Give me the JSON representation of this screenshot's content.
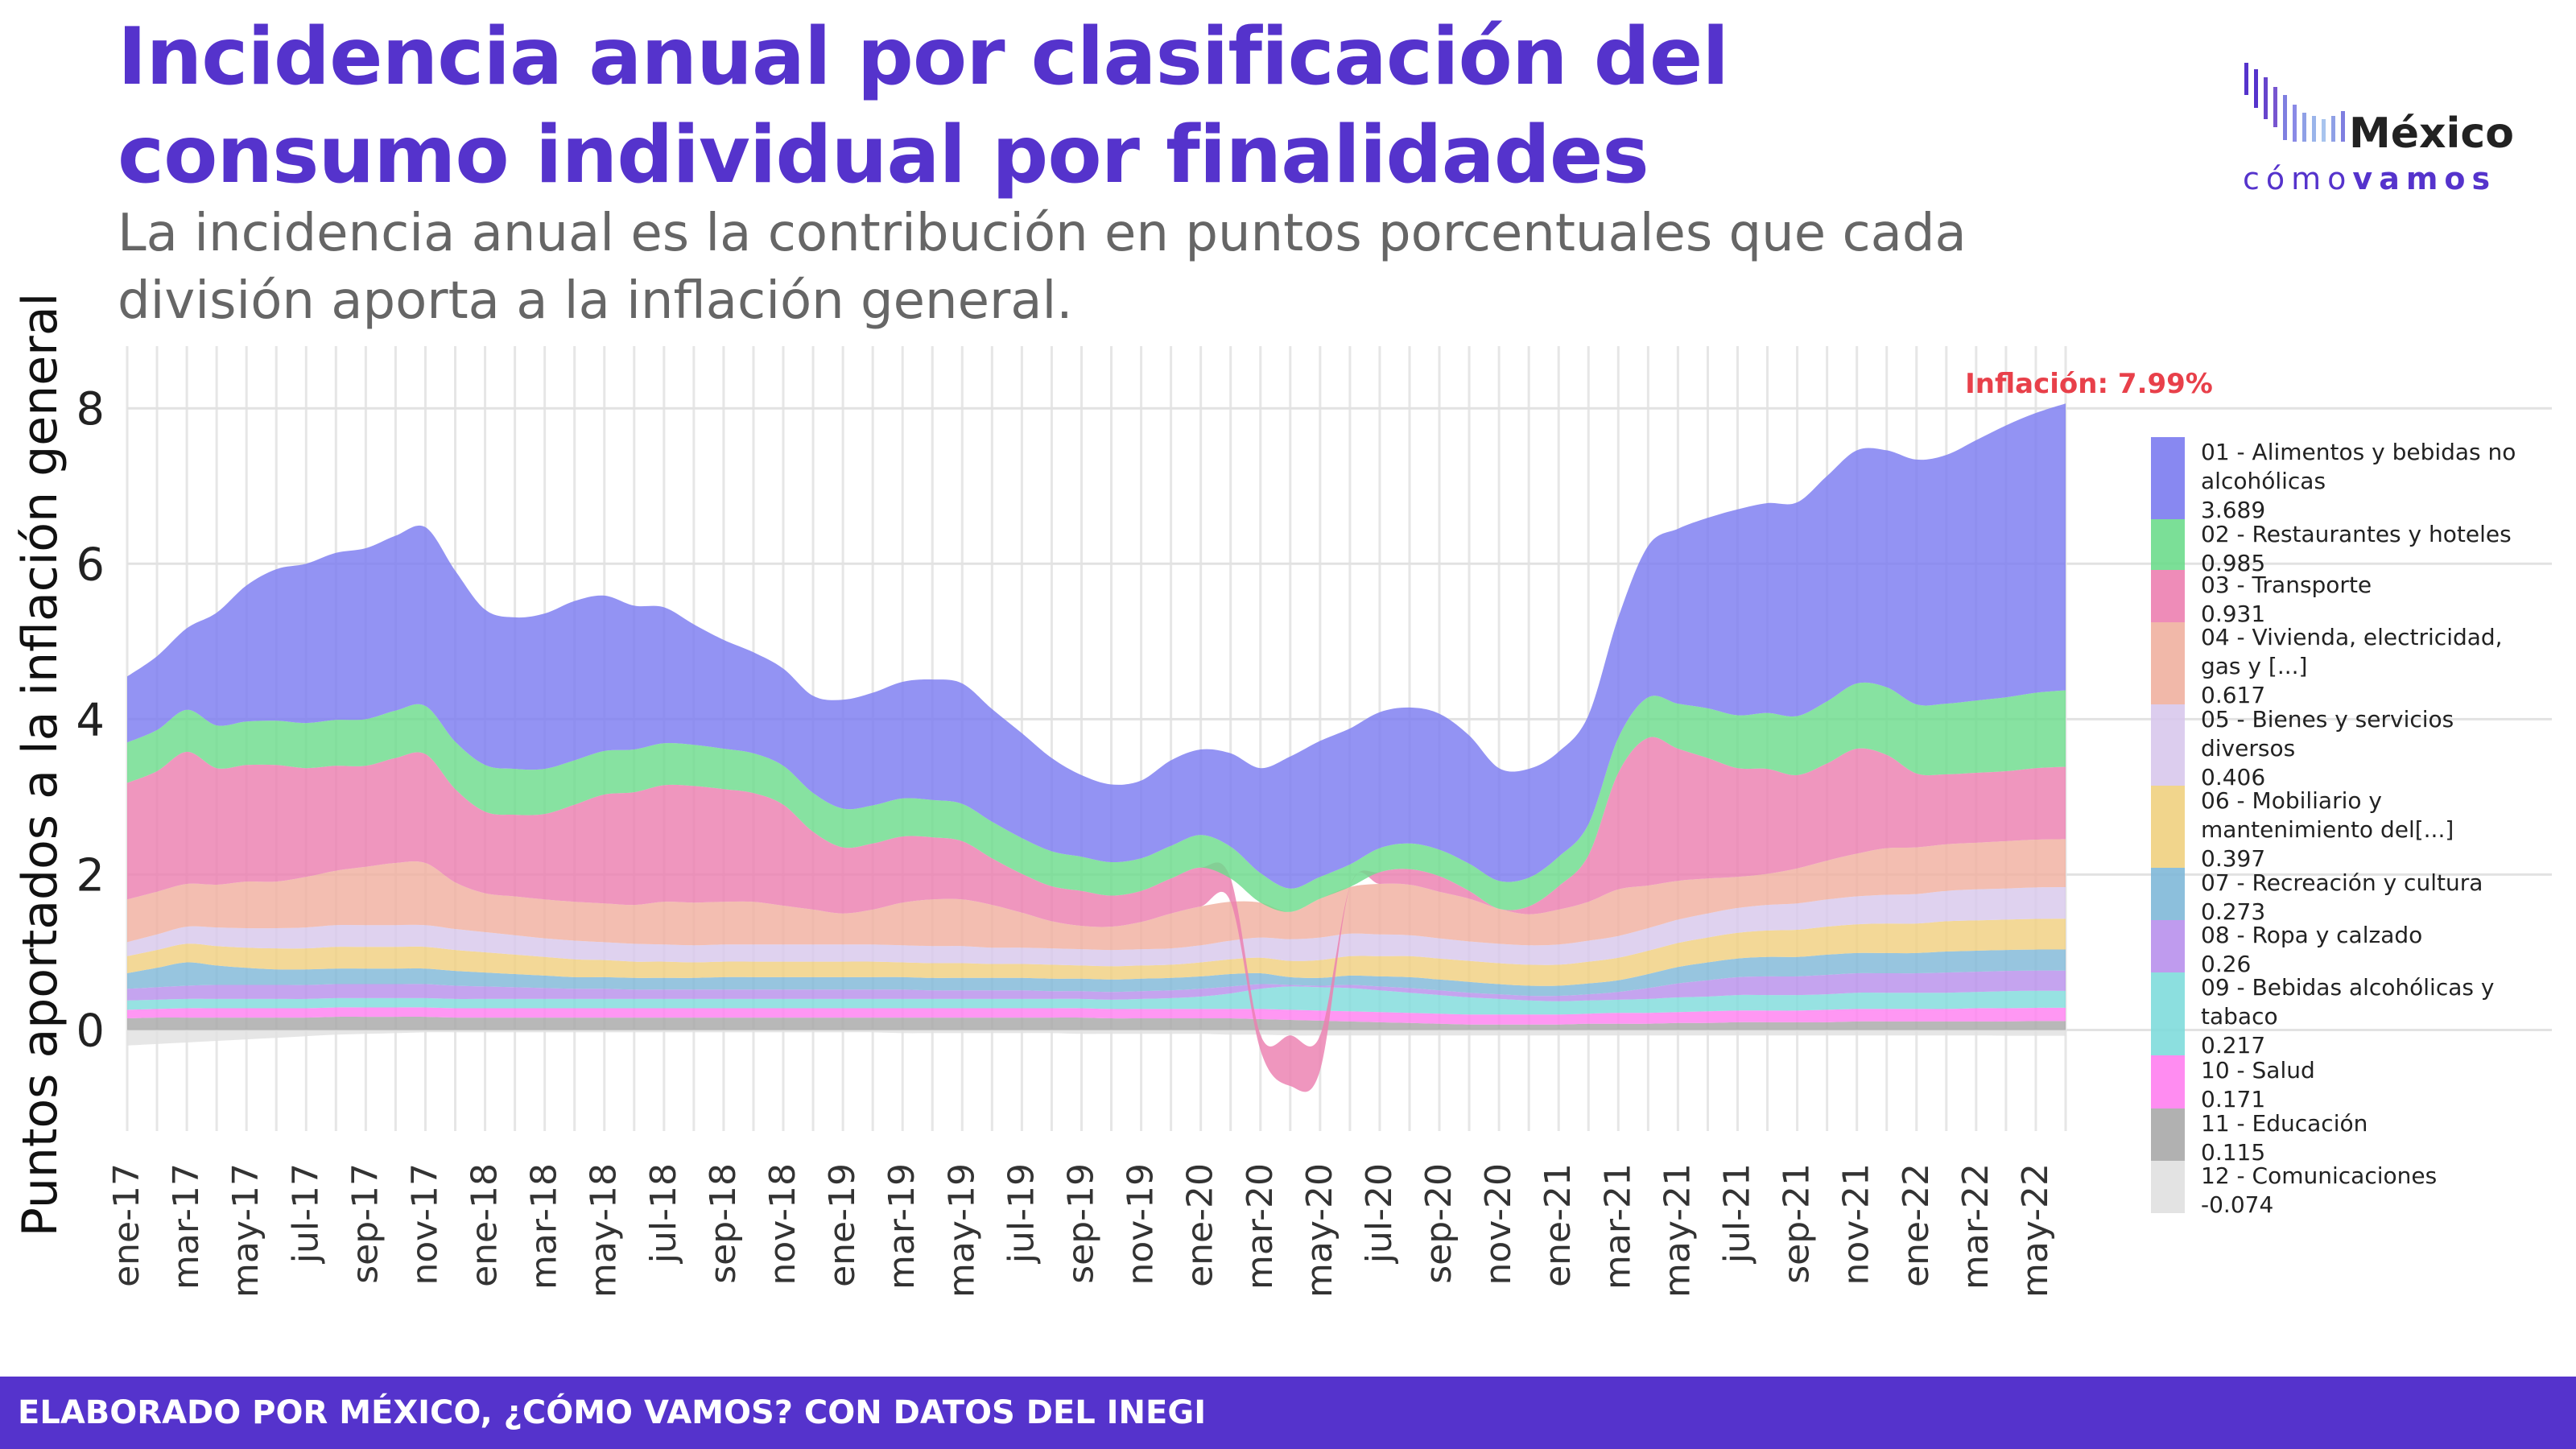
{
  "header": {
    "title": "Incidencia anual por clasificación del consumo individual por finalidades",
    "subtitle": "La incidencia anual es la contribución en puntos porcentuales que cada división aporta a la inflación general."
  },
  "logo": {
    "word_top": "México",
    "word_bottom_a": "cómo",
    "word_bottom_b": "vamos",
    "icon": "bar-equalizer-icon"
  },
  "footer": {
    "text": "ELABORADO POR MÉXICO, ¿CÓMO VAMOS? CON DATOS DEL INEGI"
  },
  "chart_data": {
    "type": "area",
    "stacked": true,
    "ylabel": "Puntos aportados a la inflación general",
    "xlabel": "",
    "ylim": [
      -1.3,
      8.8
    ],
    "yticks": [
      0,
      2,
      4,
      6,
      8
    ],
    "grid": true,
    "legend_position": "right",
    "annotation": {
      "text": "Inflación: 7.99%",
      "color": "#e8404a"
    },
    "x_tick_labels": [
      "ene-17",
      "mar-17",
      "may-17",
      "jul-17",
      "sep-17",
      "nov-17",
      "ene-18",
      "mar-18",
      "may-18",
      "jul-18",
      "sep-18",
      "nov-18",
      "ene-19",
      "mar-19",
      "may-19",
      "jul-19",
      "sep-19",
      "nov-19",
      "ene-20",
      "mar-20",
      "may-20",
      "jul-20",
      "sep-20",
      "nov-20",
      "ene-21",
      "mar-21",
      "may-21",
      "jul-21",
      "sep-21",
      "nov-21",
      "ene-22",
      "mar-22",
      "may-22"
    ],
    "x": [
      "ene-17",
      "feb-17",
      "mar-17",
      "abr-17",
      "may-17",
      "jun-17",
      "jul-17",
      "ago-17",
      "sep-17",
      "oct-17",
      "nov-17",
      "dic-17",
      "ene-18",
      "feb-18",
      "mar-18",
      "abr-18",
      "may-18",
      "jun-18",
      "jul-18",
      "ago-18",
      "sep-18",
      "oct-18",
      "nov-18",
      "dic-18",
      "ene-19",
      "feb-19",
      "mar-19",
      "abr-19",
      "may-19",
      "jun-19",
      "jul-19",
      "ago-19",
      "sep-19",
      "oct-19",
      "nov-19",
      "dic-19",
      "ene-20",
      "feb-20",
      "mar-20",
      "abr-20",
      "may-20",
      "jun-20",
      "jul-20",
      "ago-20",
      "sep-20",
      "oct-20",
      "nov-20",
      "dic-20",
      "ene-21",
      "feb-21",
      "mar-21",
      "abr-21",
      "may-21",
      "jun-21",
      "jul-21",
      "ago-21",
      "sep-21",
      "oct-21",
      "nov-21",
      "dic-21",
      "ene-22",
      "feb-22",
      "mar-22",
      "abr-22",
      "may-22",
      "jun-22"
    ],
    "series": [
      {
        "name": "01 - Alimentos y bebidas no alcohólicas",
        "last_label": "3.689",
        "color": "#7b7bf0",
        "values": [
          0.85,
          0.95,
          1.05,
          1.45,
          1.75,
          1.95,
          2.05,
          2.15,
          2.2,
          2.25,
          2.3,
          2.2,
          2.0,
          1.95,
          2.0,
          2.05,
          2.0,
          1.85,
          1.75,
          1.55,
          1.4,
          1.3,
          1.25,
          1.25,
          1.4,
          1.45,
          1.5,
          1.55,
          1.55,
          1.45,
          1.35,
          1.2,
          1.05,
          1.0,
          1.0,
          1.1,
          1.1,
          1.2,
          1.35,
          1.7,
          1.75,
          1.75,
          1.75,
          1.75,
          1.75,
          1.65,
          1.45,
          1.4,
          1.35,
          1.4,
          1.55,
          1.95,
          2.25,
          2.45,
          2.65,
          2.7,
          2.75,
          2.9,
          3.0,
          3.05,
          3.15,
          3.2,
          3.35,
          3.5,
          3.6,
          3.689
        ]
      },
      {
        "name": "02 - Restaurantes y hoteles",
        "last_label": "0.985",
        "color": "#6ddc8c",
        "values": [
          0.52,
          0.53,
          0.54,
          0.55,
          0.56,
          0.57,
          0.58,
          0.59,
          0.6,
          0.61,
          0.62,
          0.61,
          0.6,
          0.59,
          0.58,
          0.57,
          0.56,
          0.55,
          0.54,
          0.53,
          0.52,
          0.51,
          0.5,
          0.5,
          0.5,
          0.49,
          0.49,
          0.48,
          0.48,
          0.47,
          0.46,
          0.45,
          0.44,
          0.43,
          0.42,
          0.42,
          0.42,
          0.41,
          0.38,
          0.3,
          0.28,
          0.29,
          0.31,
          0.33,
          0.34,
          0.35,
          0.36,
          0.37,
          0.38,
          0.4,
          0.45,
          0.52,
          0.58,
          0.64,
          0.68,
          0.72,
          0.76,
          0.8,
          0.84,
          0.87,
          0.89,
          0.91,
          0.93,
          0.95,
          0.97,
          0.985
        ]
      },
      {
        "name": "03 - Transporte",
        "last_label": "0.931",
        "color": "#ec7fb0",
        "values": [
          1.5,
          1.55,
          1.7,
          1.5,
          1.5,
          1.5,
          1.4,
          1.35,
          1.3,
          1.35,
          1.4,
          1.2,
          1.05,
          1.05,
          1.1,
          1.25,
          1.4,
          1.45,
          1.5,
          1.5,
          1.45,
          1.4,
          1.3,
          1.0,
          0.85,
          0.85,
          0.85,
          0.8,
          0.75,
          0.6,
          0.5,
          0.45,
          0.45,
          0.4,
          0.4,
          0.45,
          0.5,
          0.3,
          -0.2,
          -0.65,
          -0.45,
          0.0,
          0.15,
          0.2,
          0.2,
          0.1,
          0.0,
          0.1,
          0.3,
          0.6,
          1.5,
          1.9,
          1.7,
          1.55,
          1.4,
          1.35,
          1.2,
          1.25,
          1.35,
          1.2,
          0.95,
          0.9,
          0.9,
          0.9,
          0.92,
          0.931
        ]
      },
      {
        "name": "04 - Vivienda, electricidad, gas y [...]",
        "last_label": "0.617",
        "color": "#f0b0a0",
        "values": [
          0.55,
          0.55,
          0.55,
          0.55,
          0.6,
          0.6,
          0.65,
          0.7,
          0.75,
          0.8,
          0.8,
          0.6,
          0.5,
          0.5,
          0.5,
          0.5,
          0.5,
          0.5,
          0.55,
          0.55,
          0.55,
          0.55,
          0.5,
          0.45,
          0.4,
          0.45,
          0.55,
          0.6,
          0.6,
          0.55,
          0.45,
          0.35,
          0.3,
          0.3,
          0.35,
          0.45,
          0.5,
          0.5,
          0.45,
          0.35,
          0.5,
          0.6,
          0.65,
          0.65,
          0.6,
          0.55,
          0.45,
          0.4,
          0.45,
          0.5,
          0.6,
          0.55,
          0.5,
          0.45,
          0.4,
          0.4,
          0.45,
          0.5,
          0.55,
          0.6,
          0.6,
          0.6,
          0.6,
          0.61,
          0.615,
          0.617
        ]
      },
      {
        "name": "05 - Bienes y servicios diversos",
        "last_label": "0.406",
        "color": "#d8c8ec",
        "values": [
          0.18,
          0.2,
          0.22,
          0.24,
          0.25,
          0.26,
          0.27,
          0.28,
          0.28,
          0.28,
          0.28,
          0.27,
          0.26,
          0.25,
          0.24,
          0.24,
          0.23,
          0.23,
          0.22,
          0.22,
          0.22,
          0.22,
          0.22,
          0.22,
          0.22,
          0.22,
          0.22,
          0.22,
          0.22,
          0.21,
          0.21,
          0.21,
          0.21,
          0.21,
          0.21,
          0.21,
          0.22,
          0.24,
          0.26,
          0.28,
          0.29,
          0.29,
          0.28,
          0.27,
          0.26,
          0.25,
          0.25,
          0.25,
          0.26,
          0.27,
          0.28,
          0.29,
          0.3,
          0.31,
          0.32,
          0.33,
          0.34,
          0.35,
          0.36,
          0.37,
          0.38,
          0.39,
          0.4,
          0.4,
          0.405,
          0.406
        ]
      },
      {
        "name": "06 - Mobiliario y mantenimiento del[...]",
        "last_label": "0.397",
        "color": "#f0d080",
        "values": [
          0.22,
          0.23,
          0.24,
          0.25,
          0.26,
          0.27,
          0.27,
          0.28,
          0.28,
          0.28,
          0.28,
          0.27,
          0.26,
          0.25,
          0.24,
          0.23,
          0.22,
          0.21,
          0.21,
          0.2,
          0.2,
          0.2,
          0.2,
          0.2,
          0.2,
          0.2,
          0.19,
          0.19,
          0.19,
          0.18,
          0.18,
          0.18,
          0.17,
          0.17,
          0.17,
          0.17,
          0.18,
          0.19,
          0.2,
          0.21,
          0.23,
          0.25,
          0.26,
          0.27,
          0.27,
          0.27,
          0.27,
          0.27,
          0.27,
          0.28,
          0.29,
          0.3,
          0.31,
          0.32,
          0.33,
          0.34,
          0.35,
          0.36,
          0.37,
          0.38,
          0.38,
          0.39,
          0.39,
          0.39,
          0.395,
          0.397
        ]
      },
      {
        "name": "07 - Recreación y cultura",
        "last_label": "0.273",
        "color": "#80b8d8",
        "values": [
          0.2,
          0.25,
          0.3,
          0.25,
          0.22,
          0.2,
          0.2,
          0.2,
          0.2,
          0.2,
          0.2,
          0.19,
          0.18,
          0.17,
          0.16,
          0.15,
          0.15,
          0.15,
          0.15,
          0.15,
          0.16,
          0.16,
          0.16,
          0.16,
          0.16,
          0.16,
          0.16,
          0.16,
          0.16,
          0.16,
          0.16,
          0.16,
          0.16,
          0.16,
          0.16,
          0.16,
          0.16,
          0.16,
          0.14,
          0.1,
          0.1,
          0.12,
          0.13,
          0.14,
          0.14,
          0.14,
          0.13,
          0.13,
          0.13,
          0.14,
          0.15,
          0.18,
          0.21,
          0.23,
          0.24,
          0.25,
          0.25,
          0.26,
          0.26,
          0.26,
          0.26,
          0.27,
          0.27,
          0.27,
          0.27,
          0.273
        ]
      },
      {
        "name": "08 - Ropa y calzado",
        "last_label": "0.26",
        "color": "#b890ec",
        "values": [
          0.15,
          0.16,
          0.17,
          0.18,
          0.18,
          0.18,
          0.18,
          0.18,
          0.18,
          0.18,
          0.18,
          0.17,
          0.16,
          0.15,
          0.14,
          0.13,
          0.13,
          0.12,
          0.12,
          0.12,
          0.12,
          0.12,
          0.12,
          0.12,
          0.12,
          0.12,
          0.12,
          0.11,
          0.11,
          0.11,
          0.11,
          0.1,
          0.1,
          0.1,
          0.1,
          0.1,
          0.1,
          0.09,
          0.06,
          0.02,
          0.02,
          0.04,
          0.05,
          0.06,
          0.06,
          0.06,
          0.06,
          0.06,
          0.07,
          0.08,
          0.1,
          0.14,
          0.18,
          0.21,
          0.23,
          0.24,
          0.24,
          0.25,
          0.25,
          0.25,
          0.25,
          0.26,
          0.26,
          0.26,
          0.26,
          0.26
        ]
      },
      {
        "name": "09 - Bebidas alcohólicas y tabaco",
        "last_label": "0.217",
        "color": "#80dcdc",
        "values": [
          0.12,
          0.12,
          0.12,
          0.12,
          0.12,
          0.12,
          0.12,
          0.12,
          0.12,
          0.12,
          0.12,
          0.12,
          0.12,
          0.12,
          0.12,
          0.12,
          0.12,
          0.12,
          0.12,
          0.12,
          0.12,
          0.12,
          0.12,
          0.12,
          0.12,
          0.12,
          0.12,
          0.12,
          0.12,
          0.12,
          0.12,
          0.12,
          0.12,
          0.12,
          0.13,
          0.14,
          0.16,
          0.2,
          0.26,
          0.3,
          0.3,
          0.3,
          0.28,
          0.26,
          0.24,
          0.22,
          0.2,
          0.18,
          0.17,
          0.17,
          0.17,
          0.18,
          0.19,
          0.19,
          0.2,
          0.2,
          0.2,
          0.2,
          0.21,
          0.21,
          0.21,
          0.21,
          0.21,
          0.22,
          0.22,
          0.217
        ]
      },
      {
        "name": "10 - Salud",
        "last_label": "0.171",
        "color": "#ff80f0",
        "values": [
          0.11,
          0.11,
          0.12,
          0.12,
          0.12,
          0.12,
          0.12,
          0.12,
          0.12,
          0.12,
          0.12,
          0.12,
          0.12,
          0.12,
          0.12,
          0.12,
          0.12,
          0.12,
          0.12,
          0.12,
          0.12,
          0.12,
          0.12,
          0.12,
          0.12,
          0.12,
          0.12,
          0.12,
          0.12,
          0.12,
          0.12,
          0.12,
          0.12,
          0.12,
          0.12,
          0.12,
          0.12,
          0.12,
          0.13,
          0.13,
          0.13,
          0.13,
          0.13,
          0.13,
          0.13,
          0.13,
          0.13,
          0.13,
          0.13,
          0.13,
          0.14,
          0.14,
          0.14,
          0.15,
          0.15,
          0.15,
          0.15,
          0.16,
          0.16,
          0.16,
          0.16,
          0.16,
          0.17,
          0.17,
          0.17,
          0.171
        ]
      },
      {
        "name": "11 - Educación",
        "last_label": "0.115",
        "color": "#a8a8a8",
        "values": [
          0.15,
          0.16,
          0.16,
          0.16,
          0.16,
          0.16,
          0.16,
          0.17,
          0.17,
          0.17,
          0.17,
          0.16,
          0.16,
          0.16,
          0.16,
          0.16,
          0.16,
          0.16,
          0.16,
          0.16,
          0.16,
          0.16,
          0.16,
          0.16,
          0.16,
          0.16,
          0.16,
          0.16,
          0.16,
          0.16,
          0.16,
          0.16,
          0.16,
          0.15,
          0.15,
          0.15,
          0.15,
          0.15,
          0.14,
          0.13,
          0.12,
          0.11,
          0.1,
          0.09,
          0.08,
          0.07,
          0.07,
          0.07,
          0.07,
          0.08,
          0.08,
          0.08,
          0.09,
          0.09,
          0.1,
          0.1,
          0.1,
          0.1,
          0.11,
          0.11,
          0.11,
          0.11,
          0.11,
          0.11,
          0.115,
          0.115
        ]
      },
      {
        "name": "12 - Comunicaciones",
        "last_label": "-0.074",
        "color": "#e0e0e0",
        "values": [
          -0.2,
          -0.18,
          -0.16,
          -0.14,
          -0.12,
          -0.1,
          -0.08,
          -0.06,
          -0.05,
          -0.04,
          -0.03,
          -0.03,
          -0.03,
          -0.03,
          -0.03,
          -0.03,
          -0.03,
          -0.03,
          -0.03,
          -0.03,
          -0.03,
          -0.03,
          -0.03,
          -0.03,
          -0.03,
          -0.03,
          -0.04,
          -0.04,
          -0.04,
          -0.04,
          -0.04,
          -0.04,
          -0.05,
          -0.05,
          -0.05,
          -0.05,
          -0.05,
          -0.06,
          -0.06,
          -0.07,
          -0.07,
          -0.07,
          -0.07,
          -0.07,
          -0.07,
          -0.07,
          -0.07,
          -0.07,
          -0.07,
          -0.07,
          -0.07,
          -0.07,
          -0.07,
          -0.07,
          -0.07,
          -0.07,
          -0.07,
          -0.07,
          -0.07,
          -0.07,
          -0.07,
          -0.07,
          -0.07,
          -0.074,
          -0.074,
          -0.074
        ]
      }
    ]
  }
}
